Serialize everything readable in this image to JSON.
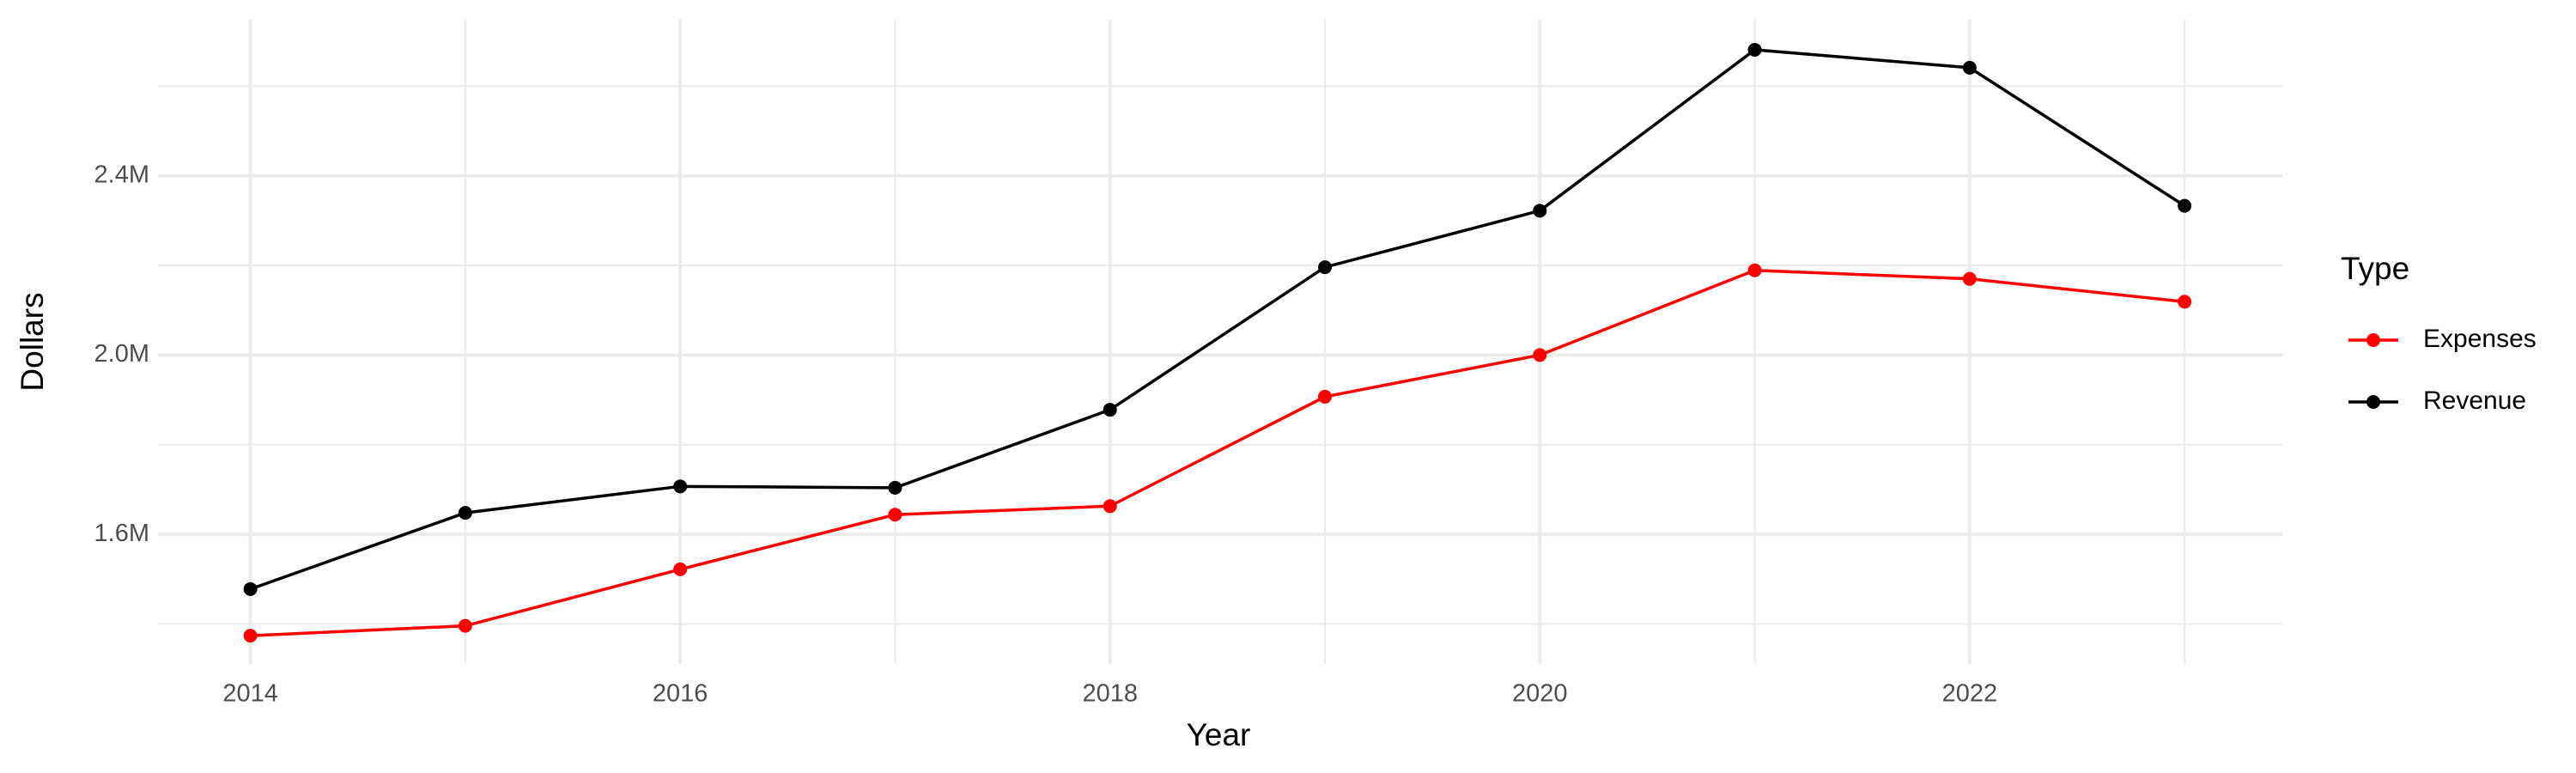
{
  "chart_data": {
    "type": "line",
    "x_label": "Year",
    "y_label": "Dollars",
    "legend_title": "Type",
    "x": [
      2014,
      2015,
      2016,
      2017,
      2018,
      2019,
      2020,
      2021,
      2022,
      2023
    ],
    "series": [
      {
        "name": "Expenses",
        "color": "#ff0000",
        "values": [
          1374000,
          1396000,
          1522000,
          1644000,
          1663000,
          1907000,
          2000000,
          2189000,
          2170000,
          2119000
        ]
      },
      {
        "name": "Revenue",
        "color": "#000000",
        "values": [
          1478000,
          1648000,
          1707000,
          1704000,
          1878000,
          2196000,
          2322000,
          2681000,
          2641000,
          2333000
        ]
      }
    ],
    "xlim": [
      2013.57,
      2023.455
    ],
    "xticks": [
      2014,
      2016,
      2018,
      2020,
      2022
    ],
    "x_minor_ticks": [
      2015,
      2017,
      2019,
      2021,
      2023
    ],
    "ylim": [
      1311000,
      2748000
    ],
    "yticks": [
      {
        "value": 1600000,
        "label": "1.6M"
      },
      {
        "value": 2000000,
        "label": "2.0M"
      },
      {
        "value": 2400000,
        "label": "2.4M"
      }
    ],
    "y_minor_ticks": [
      1400000,
      1800000,
      2200000,
      2600000
    ],
    "grid": true,
    "legend_position": "right"
  }
}
